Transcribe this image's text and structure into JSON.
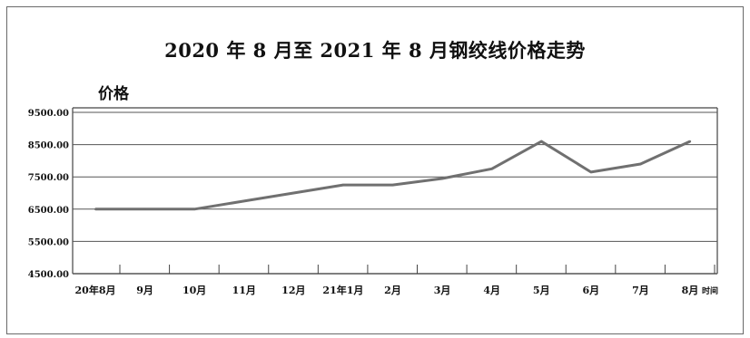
{
  "chart_data": {
    "type": "line",
    "title": "2020 年 8 月至 2021 年 8 月钢绞线价格走势",
    "ylabel": "价格",
    "xlabel": "时间",
    "categories": [
      "20年8月",
      "9月",
      "10月",
      "11月",
      "12月",
      "21年1月",
      "2月",
      "3月",
      "4月",
      "5月",
      "6月",
      "7月",
      "8月"
    ],
    "series": [
      {
        "values": [
          6500,
          6500,
          6500,
          6750,
          7000,
          7250,
          7250,
          7450,
          7750,
          8600,
          7650,
          7900,
          8600
        ],
        "color": "#707070"
      }
    ],
    "yticks": [
      "4500.00",
      "5500.00",
      "6500.00",
      "7500.00",
      "8500.00",
      "9500.00"
    ],
    "ylim": [
      4500,
      9500
    ],
    "grid": true
  }
}
